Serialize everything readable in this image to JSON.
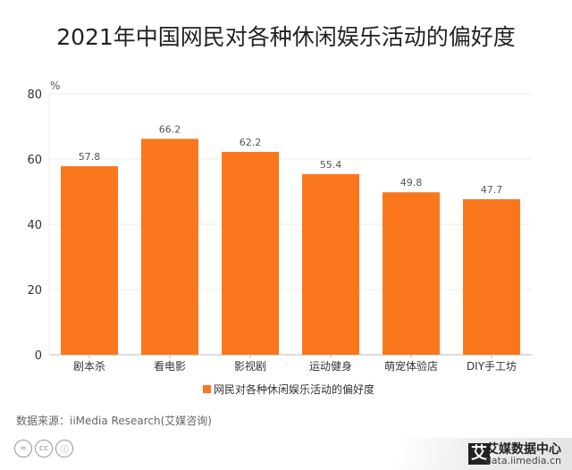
{
  "title": "2021年中国网民对各种休闲娱乐活动的偏好度",
  "source": "数据来源：iiMedia Research(艾媒咨询)",
  "brand": {
    "name": "艾媒数据中心",
    "url": "data.iimedia.cn",
    "logo": "艾"
  },
  "license_icons": [
    "=",
    "cc",
    "ⓘ"
  ],
  "colors": {
    "bar": "#FA771D",
    "grid": "#eeeeee"
  },
  "chart_data": {
    "type": "bar",
    "title": "2021年中国网民对各种休闲娱乐活动的偏好度",
    "categories": [
      "剧本杀",
      "看电影",
      "影视剧",
      "运动健身",
      "萌宠体验店",
      "DIY手工坊"
    ],
    "series": [
      {
        "name": "网民对各种休闲娱乐活动的偏好度",
        "values": [
          57.8,
          66.2,
          62.2,
          55.4,
          49.8,
          47.7
        ]
      }
    ],
    "ylabel": "%",
    "ylim": [
      0,
      80
    ],
    "yticks": [
      0,
      20,
      40,
      60,
      80
    ],
    "legend": "bottom",
    "grid": true
  }
}
